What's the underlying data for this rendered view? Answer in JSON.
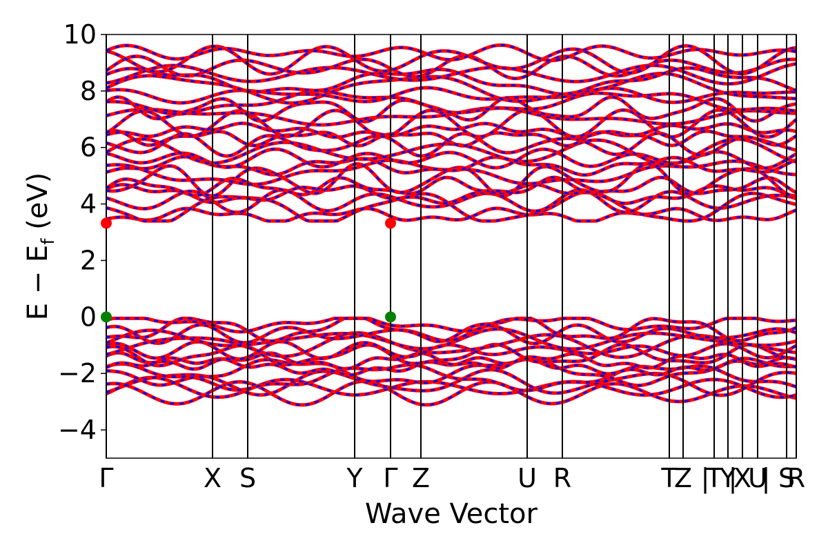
{
  "chart_data": {
    "type": "line",
    "xlabel": "Wave Vector",
    "ylabel": "E − E",
    "ylabel_sub": "f",
    "ylabel_unit": " (eV)",
    "ylim": [
      -5,
      10
    ],
    "yticks": [
      -4,
      -2,
      0,
      2,
      4,
      6,
      8,
      10
    ],
    "ytick_labels": [
      "−4",
      "−2",
      "0",
      "2",
      "4",
      "6",
      "8",
      "10"
    ],
    "xlim": [
      0,
      1
    ],
    "high_symmetry_points": [
      {
        "label": "Γ",
        "x": 0.0
      },
      {
        "label": "X",
        "x": 0.154
      },
      {
        "label": "S",
        "x": 0.205
      },
      {
        "label": "Y",
        "x": 0.36
      },
      {
        "label": "Γ",
        "x": 0.412
      },
      {
        "label": "Z",
        "x": 0.456
      },
      {
        "label": "U",
        "x": 0.61
      },
      {
        "label": "R",
        "x": 0.661
      },
      {
        "label": "T",
        "x": 0.816
      },
      {
        "label": "Z",
        "x": 0.836
      },
      {
        "label": "|",
        "x": 0.868
      },
      {
        "label": "T",
        "x": 0.881
      },
      {
        "label": "Y",
        "x": 0.901
      },
      {
        "label": "|",
        "x": 0.908
      },
      {
        "label": "X",
        "x": 0.922
      },
      {
        "label": "U",
        "x": 0.944
      },
      {
        "label": "|",
        "x": 0.956
      },
      {
        "label": "S",
        "x": 0.986
      },
      {
        "label": "R",
        "x": 1.0
      }
    ],
    "band_edges": {
      "cbm": [
        {
          "x": 0.0,
          "y": 3.32
        },
        {
          "x": 0.412,
          "y": 3.32
        }
      ],
      "vbm": [
        {
          "x": 0.0,
          "y": 0.0
        },
        {
          "x": 0.412,
          "y": 0.0
        }
      ]
    },
    "colors": {
      "band_primary": "#ff0000",
      "band_secondary": "#0000ff",
      "cbm_marker": "#ff0000",
      "vbm_marker": "#008000",
      "axis": "#000000"
    },
    "grid": false,
    "legend": "none"
  }
}
